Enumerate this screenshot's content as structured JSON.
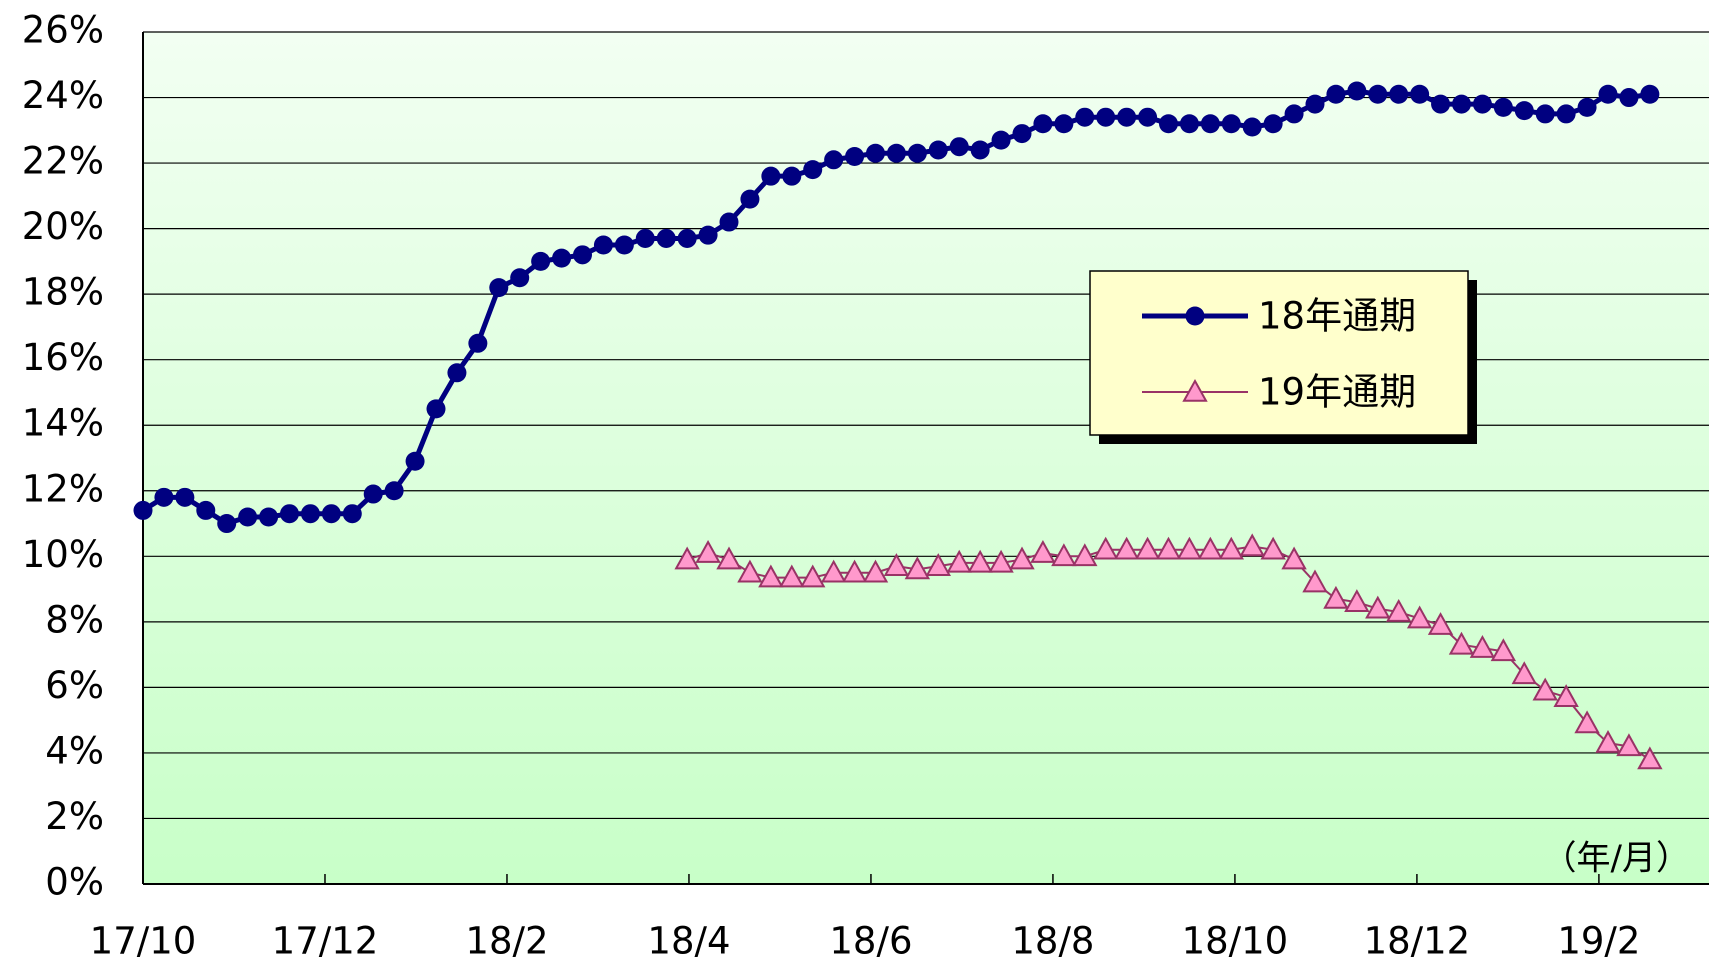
{
  "chart_data": {
    "type": "line",
    "annotation": "（年/月）",
    "x": [
      0,
      0.23,
      0.46,
      0.69,
      0.92,
      1.15,
      1.38,
      1.61,
      1.84,
      2.07,
      2.3,
      2.53,
      2.76,
      2.99,
      3.22,
      3.45,
      3.68,
      3.91,
      4.14,
      4.37,
      4.6,
      4.83,
      5.06,
      5.29,
      5.52,
      5.75,
      5.98,
      6.21,
      6.44,
      6.67,
      6.9,
      7.13,
      7.36,
      7.59,
      7.82,
      8.05,
      8.28,
      8.51,
      8.74,
      8.97,
      9.2,
      9.43,
      9.66,
      9.89,
      10.12,
      10.35,
      10.58,
      10.81,
      11.04,
      11.27,
      11.5,
      11.73,
      11.96,
      12.19,
      12.42,
      12.65,
      12.88,
      13.11,
      13.34,
      13.57,
      13.8,
      14.03,
      14.26,
      14.49,
      14.72,
      14.95,
      15.18,
      15.41,
      15.64,
      15.87,
      16.1,
      16.33,
      16.56
    ],
    "series": [
      {
        "name": "18年通期",
        "color": "#000080",
        "marker": "circle",
        "values": [
          11.4,
          11.8,
          11.8,
          11.4,
          11.0,
          11.2,
          11.2,
          11.3,
          11.3,
          11.3,
          11.3,
          11.9,
          12.0,
          12.9,
          14.5,
          15.6,
          16.5,
          18.2,
          18.5,
          19.0,
          19.1,
          19.2,
          19.5,
          19.5,
          19.7,
          19.7,
          19.7,
          19.8,
          20.2,
          20.9,
          21.6,
          21.6,
          21.8,
          22.1,
          22.2,
          22.3,
          22.3,
          22.3,
          22.4,
          22.5,
          22.4,
          22.7,
          22.9,
          23.2,
          23.2,
          23.4,
          23.4,
          23.4,
          23.4,
          23.2,
          23.2,
          23.2,
          23.2,
          23.1,
          23.2,
          23.5,
          23.8,
          24.1,
          24.2,
          24.1,
          24.1,
          24.1,
          23.8,
          23.8,
          23.8,
          23.7,
          23.6,
          23.5,
          23.5,
          23.7,
          24.1,
          24.0,
          24.1
        ]
      },
      {
        "name": "19年通期",
        "color": "#993366",
        "marker": "triangle",
        "marker_color": "#ff99cc",
        "values": [
          null,
          null,
          null,
          null,
          null,
          null,
          null,
          null,
          null,
          null,
          null,
          null,
          null,
          null,
          null,
          null,
          null,
          null,
          null,
          null,
          null,
          null,
          null,
          null,
          null,
          null,
          9.9,
          10.1,
          9.9,
          9.5,
          9.35,
          9.35,
          9.35,
          9.5,
          9.5,
          9.5,
          9.7,
          9.6,
          9.7,
          9.8,
          9.8,
          9.8,
          9.9,
          10.1,
          10.0,
          10.0,
          10.2,
          10.2,
          10.2,
          10.2,
          10.2,
          10.2,
          10.2,
          10.3,
          10.2,
          9.9,
          9.2,
          8.7,
          8.6,
          8.4,
          8.3,
          8.1,
          7.9,
          7.3,
          7.2,
          7.1,
          6.4,
          5.9,
          5.7,
          4.9,
          4.3,
          4.2,
          3.8
        ]
      }
    ],
    "xlim": [
      0,
      17.21
    ],
    "xticks": [
      {
        "value": 0,
        "label": "17/10"
      },
      {
        "value": 2,
        "label": "17/12"
      },
      {
        "value": 4,
        "label": "18/2"
      },
      {
        "value": 6,
        "label": "18/4"
      },
      {
        "value": 8,
        "label": "18/6"
      },
      {
        "value": 10,
        "label": "18/8"
      },
      {
        "value": 12,
        "label": "18/10"
      },
      {
        "value": 14,
        "label": "18/12"
      },
      {
        "value": 16,
        "label": "19/2"
      }
    ],
    "ylim": [
      0,
      26
    ],
    "yticks": [
      {
        "value": 0,
        "label": "0%"
      },
      {
        "value": 2,
        "label": "2%"
      },
      {
        "value": 4,
        "label": "4%"
      },
      {
        "value": 6,
        "label": "6%"
      },
      {
        "value": 8,
        "label": "8%"
      },
      {
        "value": 10,
        "label": "10%"
      },
      {
        "value": 12,
        "label": "12%"
      },
      {
        "value": 14,
        "label": "14%"
      },
      {
        "value": 16,
        "label": "16%"
      },
      {
        "value": 18,
        "label": "18%"
      },
      {
        "value": 20,
        "label": "20%"
      },
      {
        "value": 22,
        "label": "22%"
      },
      {
        "value": 24,
        "label": "24%"
      },
      {
        "value": 26,
        "label": "26%"
      }
    ],
    "grid": true
  }
}
